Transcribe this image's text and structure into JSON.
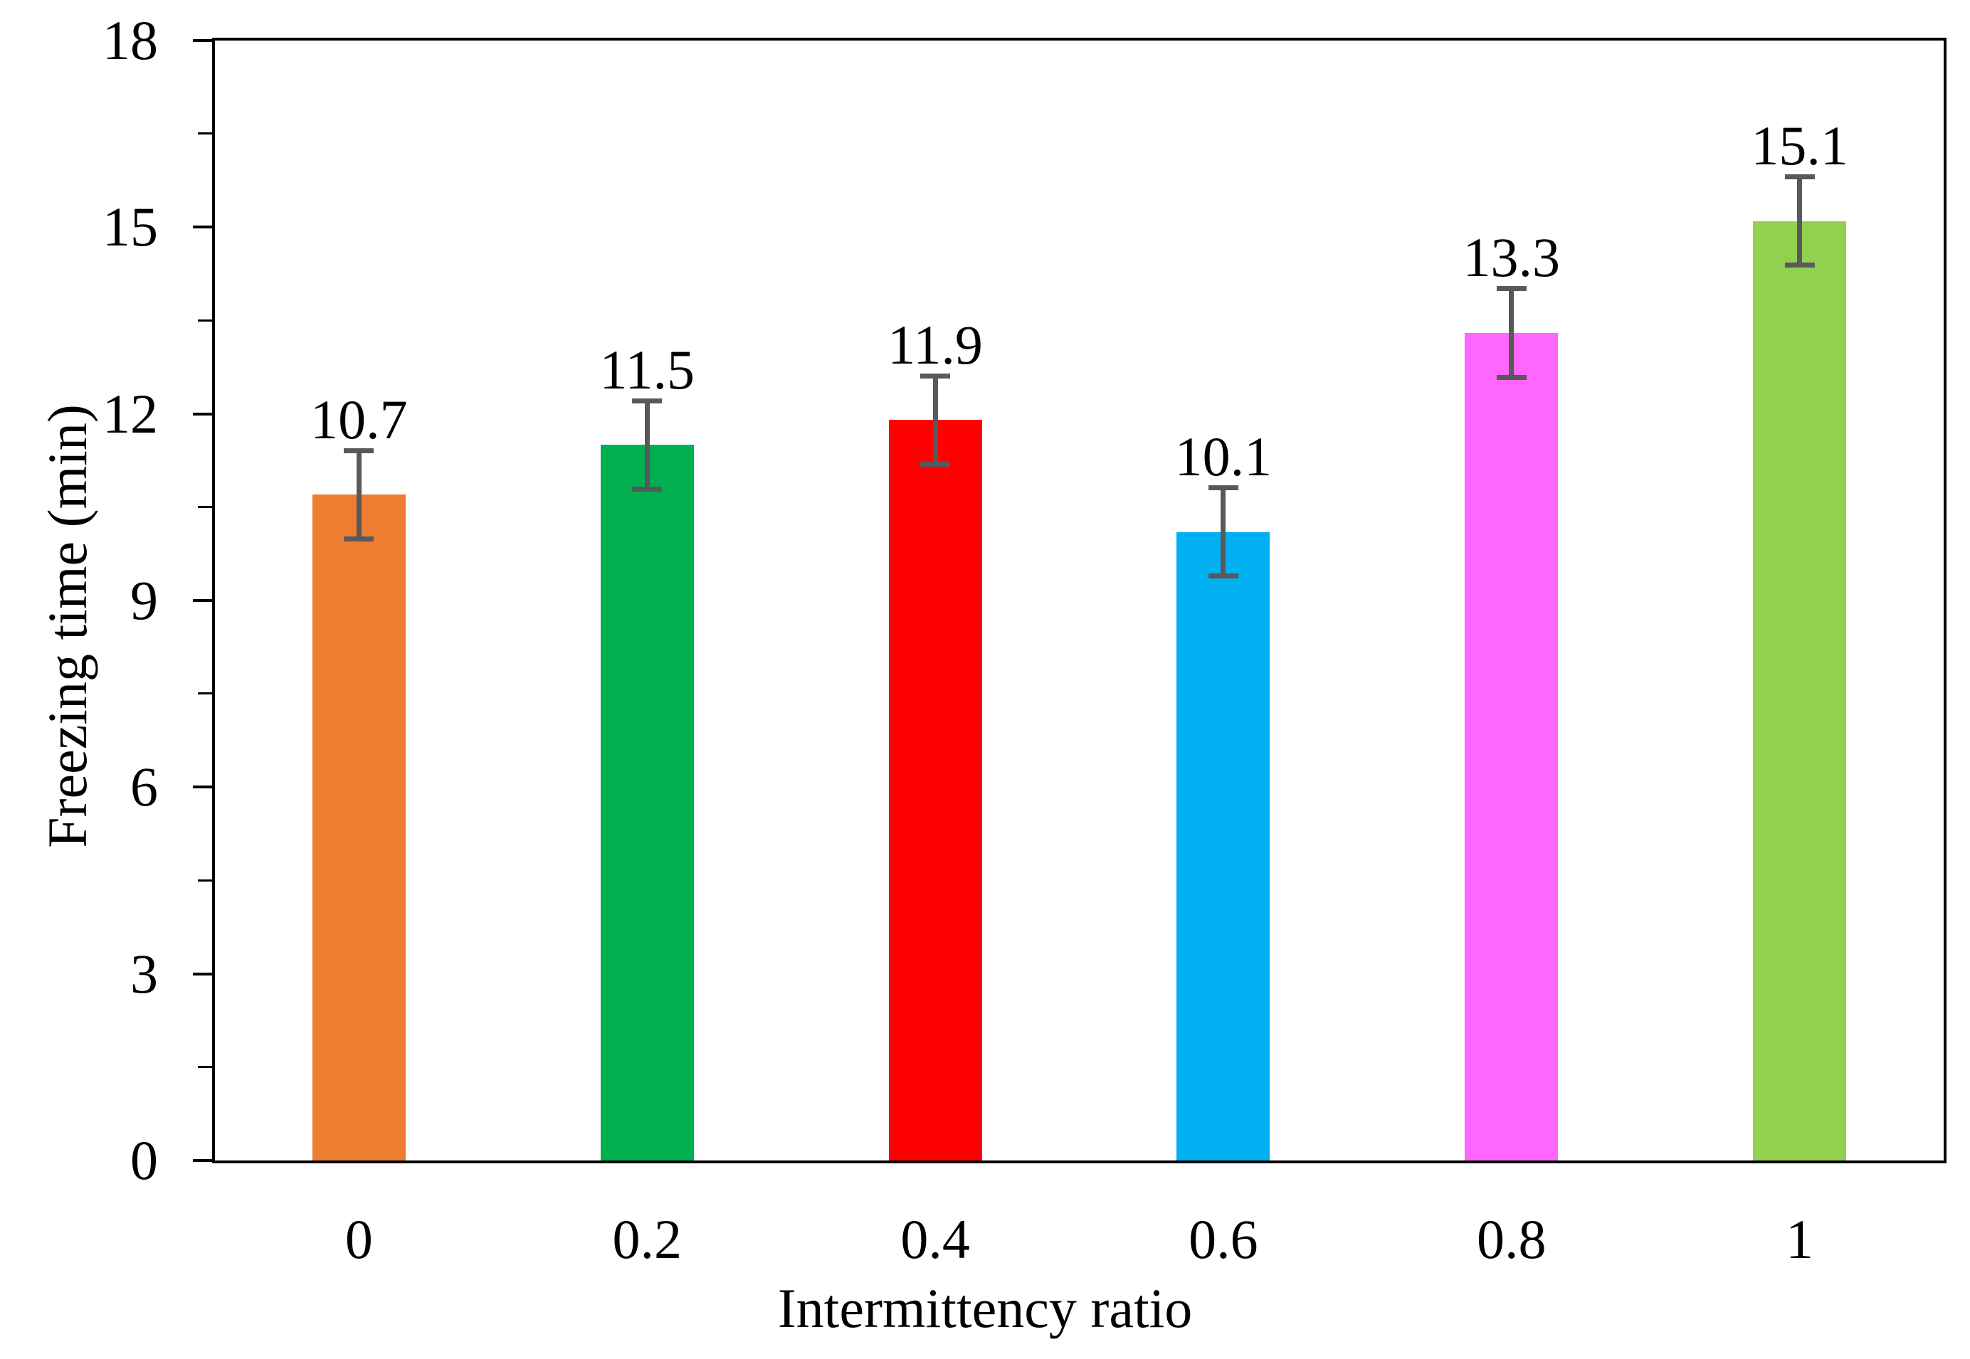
{
  "chart_data": {
    "type": "bar",
    "title": "",
    "xlabel": "Intermittency ratio",
    "ylabel": "Freezing time (min)",
    "categories": [
      "0",
      "0.2",
      "0.4",
      "0.6",
      "0.8",
      "1"
    ],
    "values": [
      10.7,
      11.5,
      11.9,
      10.1,
      13.3,
      15.1
    ],
    "data_labels": [
      "10.7",
      "11.5",
      "11.9",
      "10.1",
      "13.3",
      "15.1"
    ],
    "error_bars": [
      0.75,
      0.75,
      0.75,
      0.75,
      0.75,
      0.75
    ],
    "bar_colors": [
      "#ED7D31",
      "#00B050",
      "#FF0000",
      "#00B0F0",
      "#FF66FF",
      "#92D050"
    ],
    "error_bar_color": "#595959",
    "axis_color": "#000000",
    "background_color": "#FFFFFF",
    "ylim": [
      0,
      18
    ],
    "ytick_major_values": [
      0,
      3,
      6,
      9,
      12,
      15,
      18
    ],
    "ytick_major_labels": [
      "0",
      "3",
      "6",
      "9",
      "12",
      "15",
      "18"
    ],
    "ytick_minor_step": 1.5,
    "grid": "off",
    "legend": "none",
    "plot_frame": "box"
  }
}
